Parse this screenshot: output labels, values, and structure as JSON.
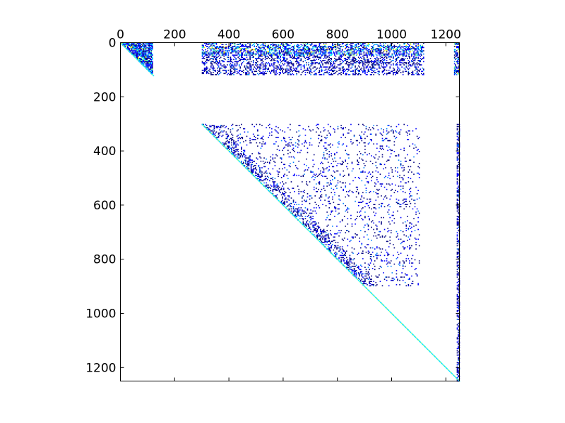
{
  "chart_data": {
    "type": "heatmap",
    "description_kind": "sparse upper-triangular matrix plot",
    "title": "",
    "xlabel": "",
    "ylabel": "",
    "xlim": [
      0,
      1250
    ],
    "ylim": [
      1250,
      0
    ],
    "x_ticks": [
      0,
      200,
      400,
      600,
      800,
      1000,
      1200
    ],
    "x_tick_labels": [
      "0",
      "200",
      "400",
      "600",
      "800",
      "1000",
      "1200"
    ],
    "y_ticks": [
      0,
      200,
      400,
      600,
      800,
      1000,
      1200
    ],
    "y_tick_labels": [
      "0",
      "200",
      "400",
      "600",
      "800",
      "1000",
      "1200"
    ],
    "x_axis_position": "top",
    "grid": false,
    "colormap": [
      "#00007f",
      "#0000ff",
      "#0080ff",
      "#00e5ff",
      "#7fff7f",
      "#ffe500",
      "#ff4000"
    ],
    "matrix_size": 1250,
    "dense_blocks": [
      {
        "rows": [
          0,
          120
        ],
        "cols": [
          0,
          120
        ],
        "shape": "upper-triangle",
        "density": 0.85
      },
      {
        "rows": [
          0,
          120
        ],
        "cols": [
          300,
          1120
        ],
        "shape": "rectangle",
        "density": 0.35
      },
      {
        "rows": [
          0,
          120
        ],
        "cols": [
          1230,
          1250
        ],
        "shape": "rectangle",
        "density": 0.6
      }
    ],
    "sparse_regions": [
      {
        "rows": [
          300,
          900
        ],
        "cols": [
          300,
          1120
        ],
        "shape": "upper-triangle",
        "density": 0.08
      },
      {
        "rows": [
          300,
          1250
        ],
        "cols": [
          1240,
          1250
        ],
        "shape": "rectangle",
        "density": 0.5
      }
    ]
  }
}
